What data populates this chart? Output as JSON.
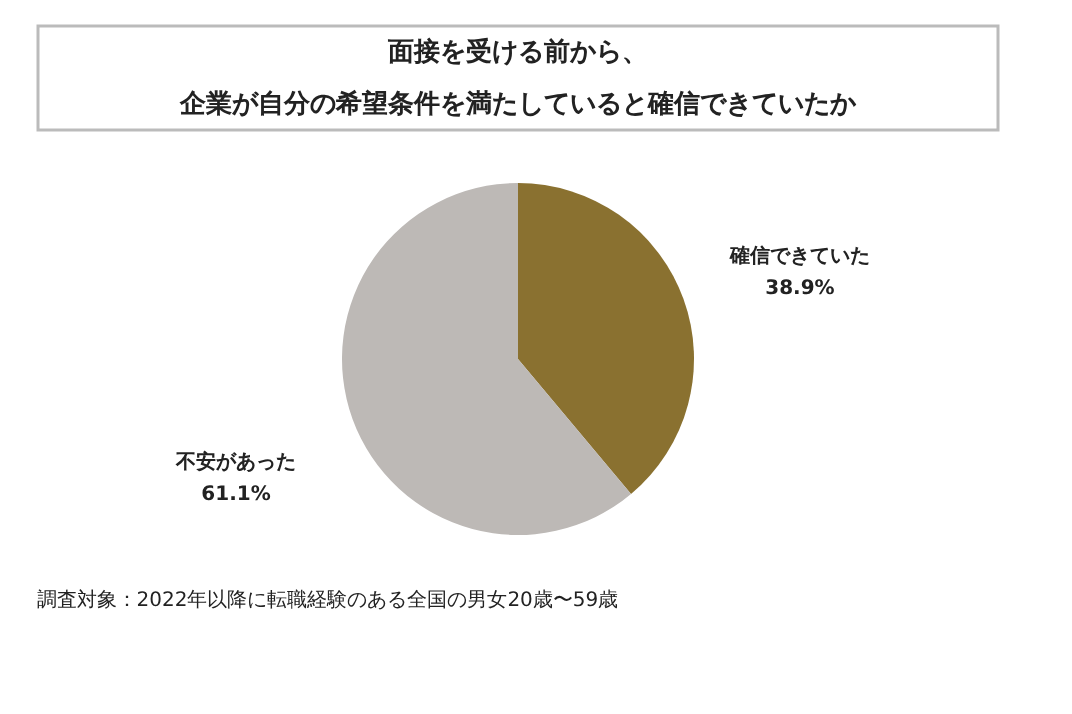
{
  "chart_data": {
    "type": "pie",
    "title": "面接を受ける前から、企業が自分の希望条件を満たしていると確信できていたか",
    "categories": [
      "確信できていた",
      "不安があった"
    ],
    "values": [
      38.9,
      61.1
    ],
    "colors": [
      "#8a7130",
      "#bdb9b6"
    ],
    "value_labels": [
      "38.9%",
      "61.1%"
    ],
    "legend": false,
    "annotations": [
      "調査対象：2022年以降に転職経験のある全国の男女20歳〜59歳"
    ]
  }
}
